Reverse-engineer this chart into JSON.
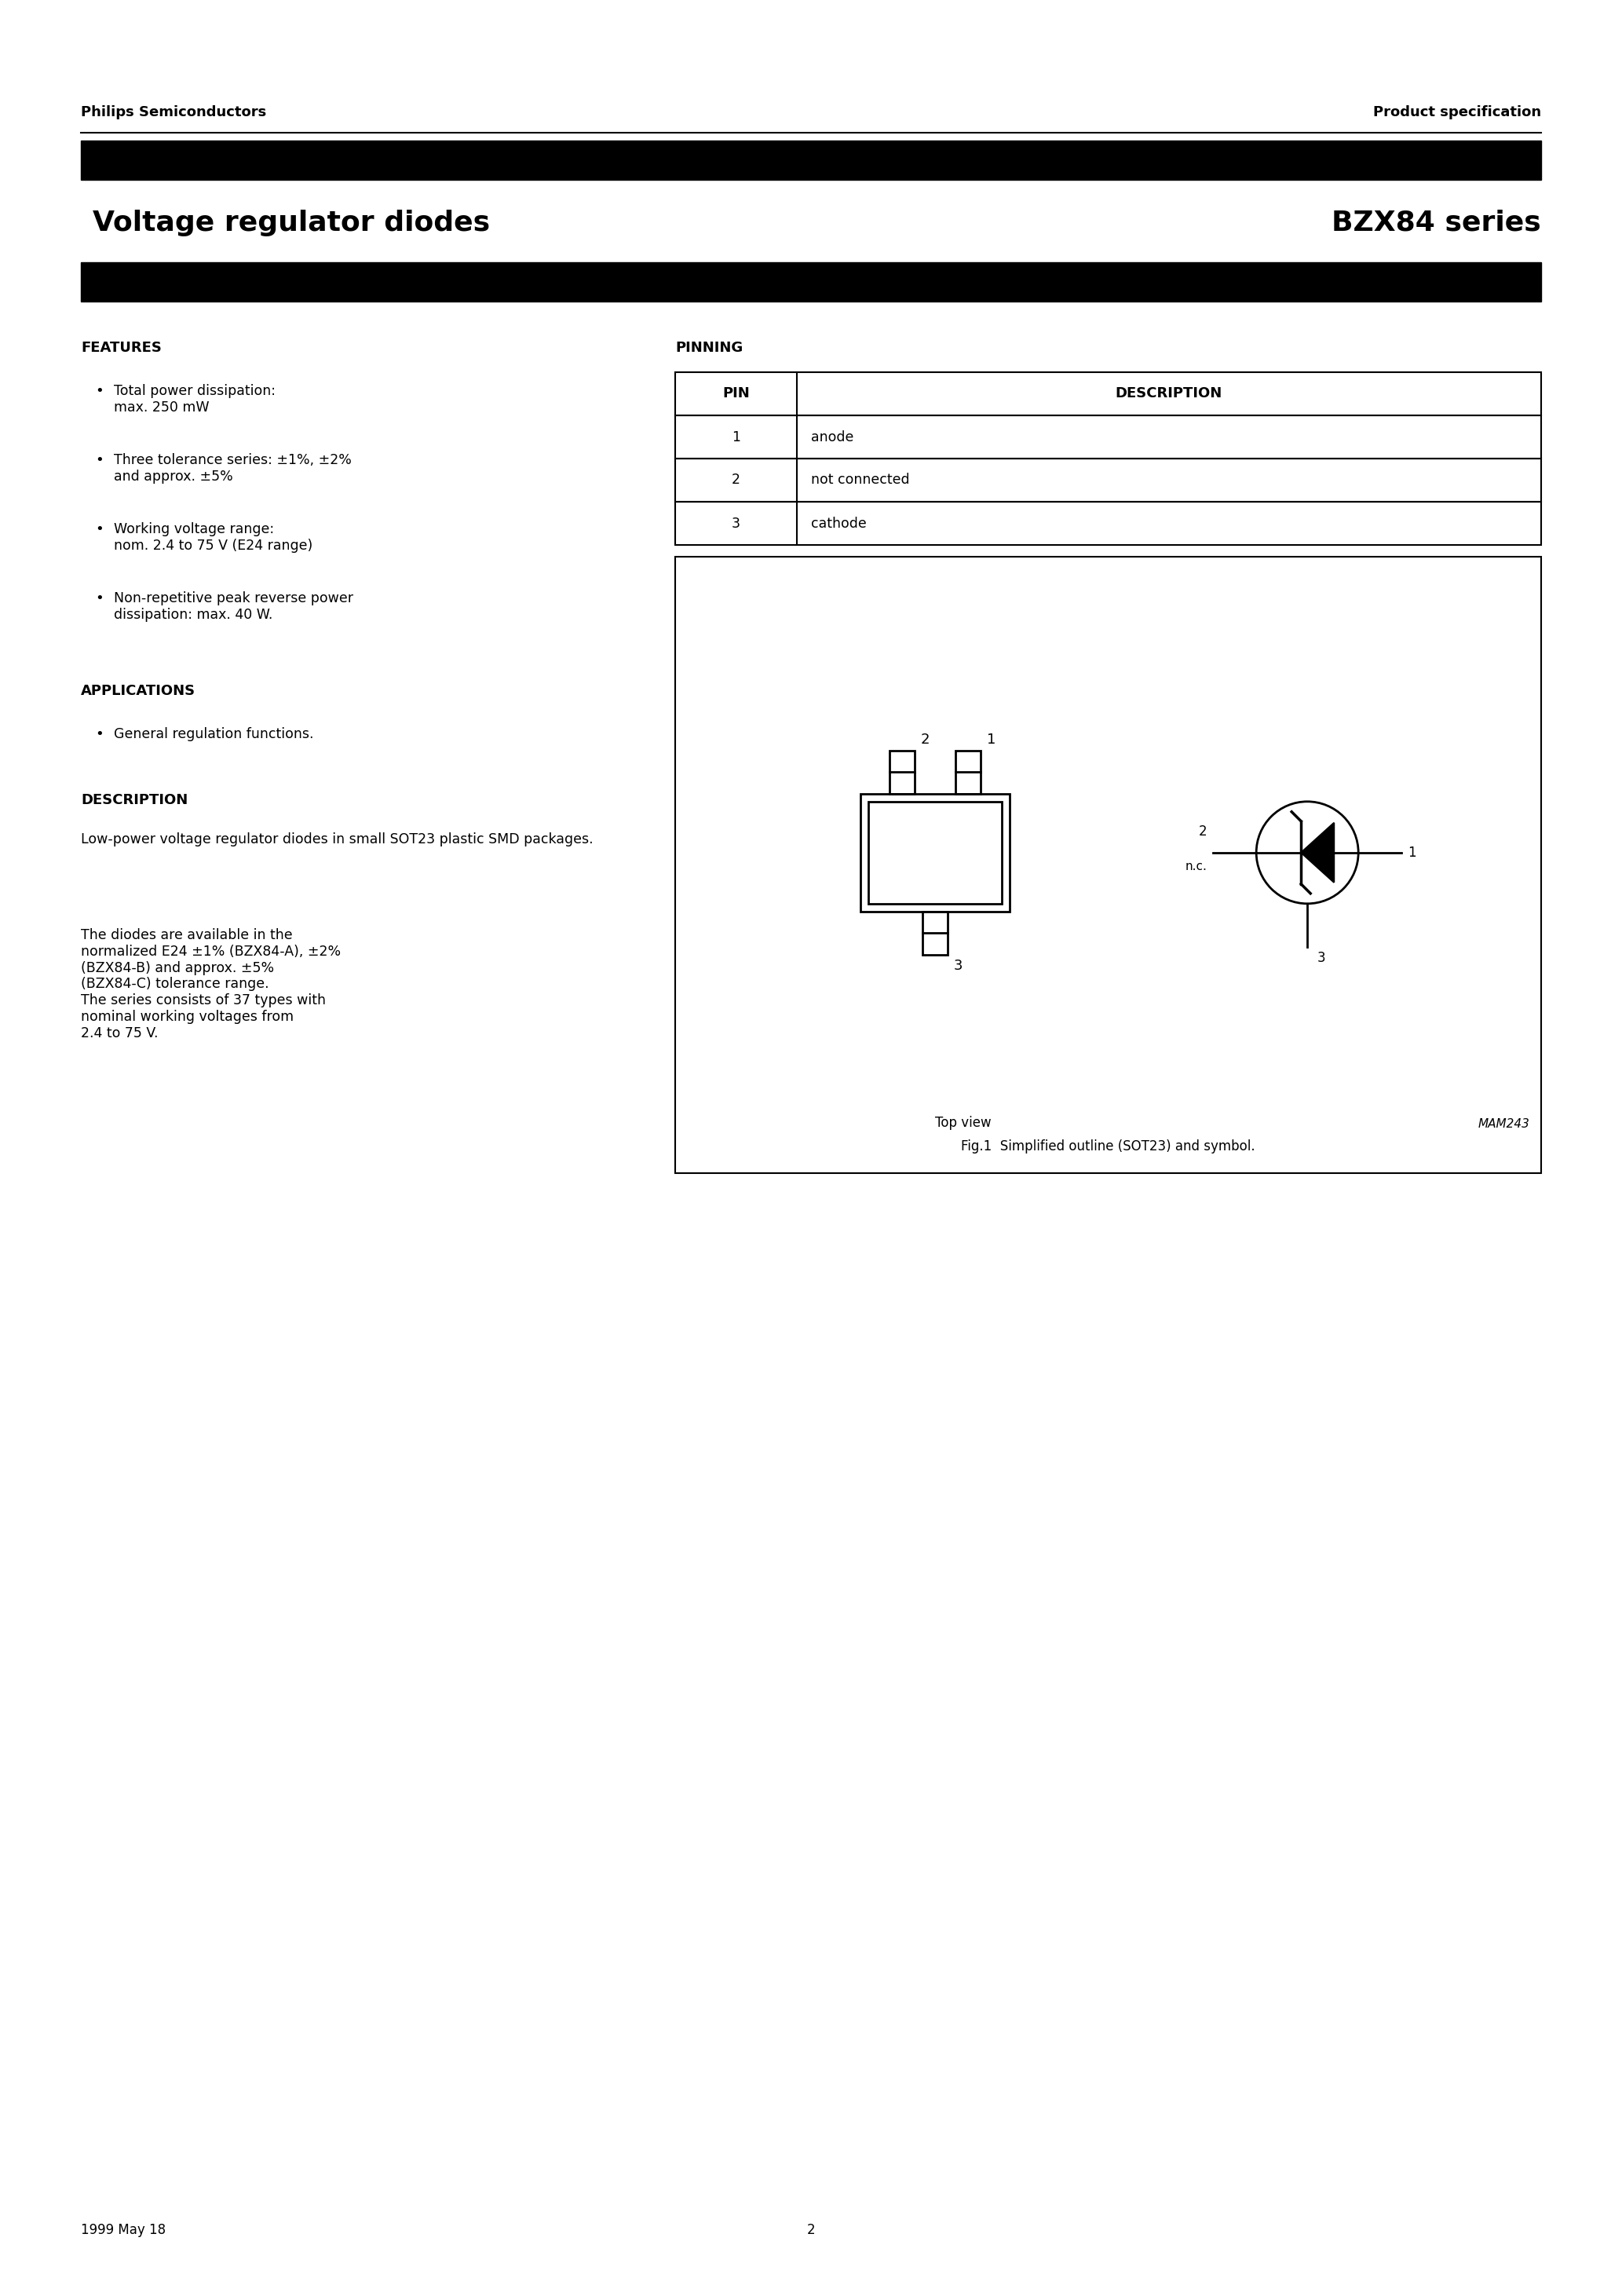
{
  "page_title_left": "Voltage regulator diodes",
  "page_title_right": "BZX84 series",
  "header_left": "Philips Semiconductors",
  "header_right": "Product specification",
  "features_title": "FEATURES",
  "features_bullets": [
    "Total power dissipation:\nmax. 250 mW",
    "Three tolerance series: ±1%, ±2%\nand approx. ±5%",
    "Working voltage range:\nnom. 2.4 to 75 V (E24 range)",
    "Non-repetitive peak reverse power\ndissipation: max. 40 W."
  ],
  "applications_title": "APPLICATIONS",
  "applications_bullets": [
    "General regulation functions."
  ],
  "description_title": "DESCRIPTION",
  "description_text1": "Low-power voltage regulator diodes in small SOT23 plastic SMD packages.",
  "description_text2": "The diodes are available in the\nnormalized E24 ±1% (BZX84-A), ±2%\n(BZX84-B) and approx. ±5%\n(BZX84-C) tolerance range.\nThe series consists of 37 types with\nnominal working voltages from\n2.4 to 75 V.",
  "pinning_title": "PINNING",
  "pin_header": [
    "PIN",
    "DESCRIPTION"
  ],
  "pin_data": [
    [
      "1",
      "anode"
    ],
    [
      "2",
      "not connected"
    ],
    [
      "3",
      "cathode"
    ]
  ],
  "fig_caption": "Fig.1  Simplified outline (SOT23) and symbol.",
  "fig_label": "MAM243",
  "footer_left": "1999 May 18",
  "footer_center": "2",
  "bg_color": "#ffffff",
  "text_color": "#000000",
  "bar_color": "#000000"
}
